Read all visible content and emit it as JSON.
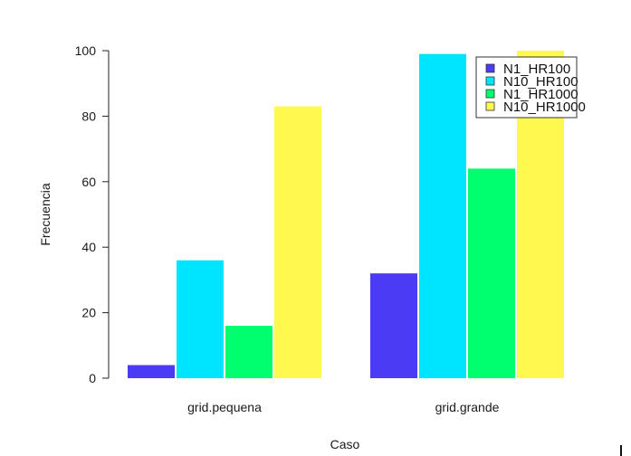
{
  "chart_data": {
    "type": "bar",
    "title": "",
    "xlabel": "Caso",
    "ylabel": "Frecuencia",
    "categories": [
      "grid.pequena",
      "grid.grande"
    ],
    "series": [
      {
        "name": "N1_HR100",
        "color": "#4B3BF5",
        "values": [
          4,
          32
        ]
      },
      {
        "name": "N10_HR100",
        "color": "#00E5FF",
        "values": [
          36,
          99
        ]
      },
      {
        "name": "N1_HR1000",
        "color": "#00FF6E",
        "values": [
          16,
          64
        ]
      },
      {
        "name": "N10_HR1000",
        "color": "#FFF84F",
        "values": [
          83,
          100
        ]
      }
    ],
    "ylim": [
      0,
      100
    ],
    "yticks": [
      0,
      20,
      40,
      60,
      80,
      100
    ],
    "grid": false,
    "legend_position": "top-right"
  }
}
